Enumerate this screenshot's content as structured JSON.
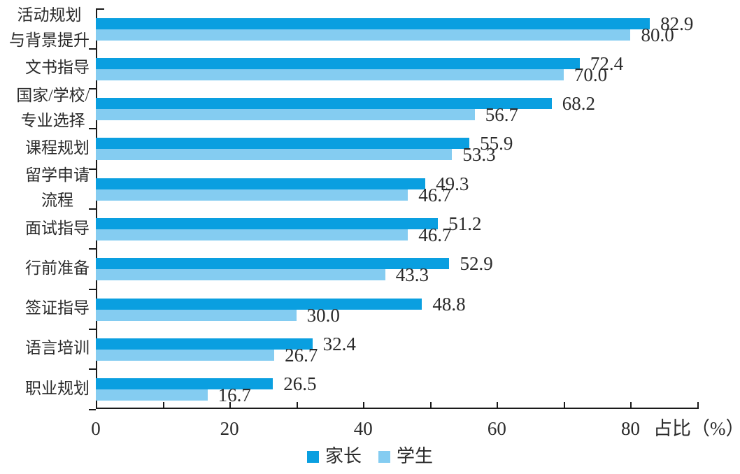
{
  "chart_data": {
    "type": "bar",
    "orientation": "horizontal",
    "title": "",
    "xlabel": "占比（%）",
    "ylabel": "",
    "xlim": [
      0,
      90
    ],
    "x_major_tick_labels": [
      0,
      20,
      40,
      60,
      80
    ],
    "x_minor_tick_step": 10,
    "grid": false,
    "legend_position": "bottom-center",
    "axis_color": "#1a1a1a",
    "text_color": "#2b2b2b",
    "categories": [
      "活动规划与背景提升",
      "文书指导",
      "国家/学校/专业选择",
      "课程规划",
      "留学申请流程",
      "面试指导",
      "行前准备",
      "签证指导",
      "语言培训",
      "职业规划"
    ],
    "category_display_lines": [
      [
        "活动规划",
        "与背景提升"
      ],
      [
        "文书指导"
      ],
      [
        "国家/学校/",
        "专业选择"
      ],
      [
        "课程规划"
      ],
      [
        "留学申请",
        "流程"
      ],
      [
        "面试指导"
      ],
      [
        "行前准备"
      ],
      [
        "签证指导"
      ],
      [
        "语言培训"
      ],
      [
        "职业规划"
      ]
    ],
    "series": [
      {
        "name": "家长",
        "color": "#0a9fe0",
        "values": [
          82.9,
          72.4,
          68.2,
          55.9,
          49.3,
          51.2,
          52.9,
          48.8,
          32.4,
          26.5
        ]
      },
      {
        "name": "学生",
        "color": "#84ccf1",
        "values": [
          80.0,
          70.0,
          56.7,
          53.3,
          46.7,
          46.7,
          43.3,
          30.0,
          26.7,
          16.7
        ]
      }
    ],
    "value_label_decimals": 1
  }
}
